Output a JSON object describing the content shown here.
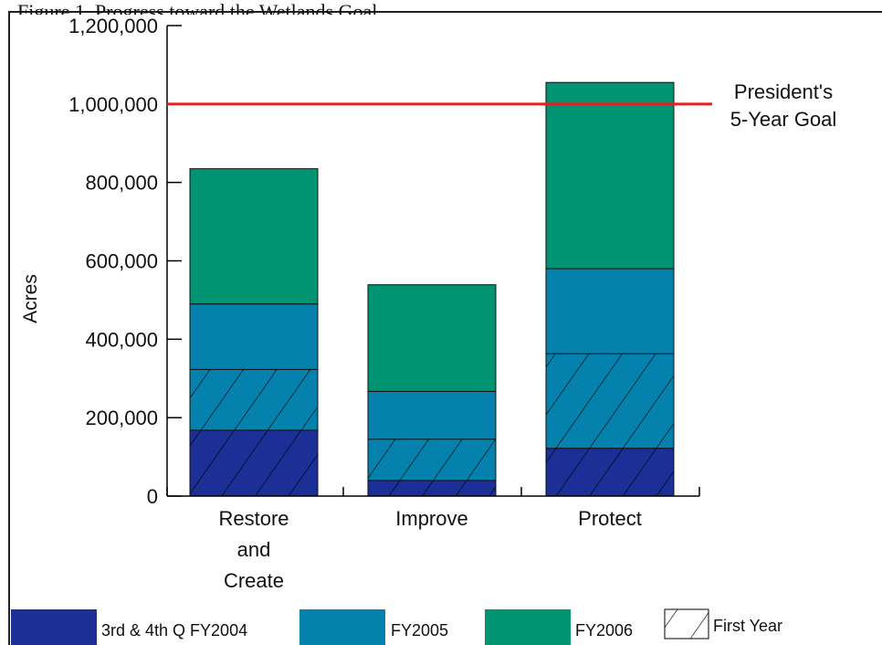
{
  "heading_fragment": "Figure 1.  Progress toward the Wetlands Goal",
  "chart_data": {
    "type": "bar",
    "stacked": true,
    "ylabel": "Acres",
    "xlabel": "",
    "ylim": [
      0,
      1200000
    ],
    "yticks": [
      0,
      200000,
      400000,
      600000,
      800000,
      1000000,
      1200000
    ],
    "ytick_labels": [
      "0",
      "200,000",
      "400,000",
      "600,000",
      "800,000",
      "1,000,000",
      "1,200,000"
    ],
    "categories": [
      "Restore and Create",
      "Improve",
      "Protect"
    ],
    "category_label_lines": [
      [
        "Restore",
        "and",
        "Create"
      ],
      [
        "Improve"
      ],
      [
        "Protect"
      ]
    ],
    "series": [
      {
        "name": "3rd & 4th Q FY2004",
        "color": "#1b2f96",
        "values": [
          168000,
          40000,
          122000
        ]
      },
      {
        "name": "FY2005",
        "color": "#0482ad",
        "values": [
          322000,
          227000,
          458000
        ]
      },
      {
        "name": "FY2006",
        "color": "#009473",
        "values": [
          345000,
          272000,
          475000
        ]
      }
    ],
    "first_year_hatch": {
      "legend": "First Year",
      "top_values": [
        323000,
        145000,
        363000
      ]
    },
    "goal_line": {
      "value": 1000000,
      "color": "#e8211f",
      "label_lines": [
        "President's",
        "5-Year Goal"
      ]
    },
    "grid": false,
    "legend_position": "bottom"
  }
}
